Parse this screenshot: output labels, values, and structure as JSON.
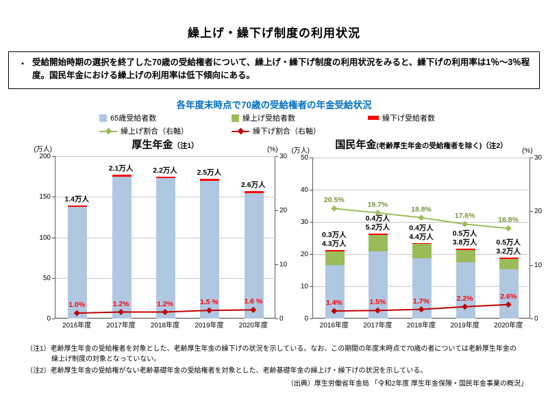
{
  "page_title": "繰上げ・繰下げ制度の利用状況",
  "summary_box": {
    "bullet": "・",
    "text": "受給開始時期の選択を終了した70歳の受給権者について、繰上げ・繰下げ制度の利用状況をみると、繰下げの利用率は1％～3％程度。国民年金における繰上げの利用率は低下傾向にある。"
  },
  "section_title": "各年度末時点で70歳の受給権者の年金受給状況",
  "legend": {
    "bar_items": [
      {
        "label": "65歳受給者数",
        "color": "#b0c7e1"
      },
      {
        "label": "繰上げ受給者数",
        "color": "#9bbb59"
      },
      {
        "label": "繰下げ受給者数",
        "color": "#ff0000"
      }
    ],
    "line_items": [
      {
        "label": "繰上げ割合（右軸）",
        "color": "#9bbb59"
      },
      {
        "label": "繰下げ割合（右軸）",
        "color": "#c00000"
      }
    ]
  },
  "colors": {
    "section_title_blue": "#0070c0",
    "bar_blue": "#b0c7e1",
    "bar_green": "#9bbb59",
    "bar_red": "#ff0000",
    "line_green": "#9bbb59",
    "line_red": "#c00000",
    "label_green": "#76933c",
    "label_red": "#ff0000"
  },
  "chart_data": [
    {
      "type": "bar",
      "title": "厚生年金",
      "title_note": "（注1）",
      "categories": [
        "2016年度",
        "2017年度",
        "2018年度",
        "2019年度",
        "2020年度"
      ],
      "left_axis": {
        "unit": "(万人)",
        "min": 0,
        "max": 200,
        "ticks": [
          0,
          50,
          100,
          150,
          200
        ]
      },
      "right_axis": {
        "unit": "(%)",
        "min": 0,
        "max": 30,
        "ticks": [
          0,
          10,
          20,
          30
        ]
      },
      "grid": true,
      "bar_series": [
        {
          "key": "age65",
          "name": "65歳受給者数",
          "color": "#b0c7e1",
          "estimated": true,
          "values": [
            137.6,
            174.9,
            172.8,
            169.5,
            154.4
          ],
          "labels": null
        },
        {
          "key": "kurisage",
          "name": "繰下げ受給者数",
          "color": "#ff0000",
          "values": [
            1.4,
            2.1,
            2.2,
            2.5,
            2.6
          ],
          "labels": [
            "1.4万人",
            "2.1万人",
            "2.2万人",
            "2.5万人",
            "2.6万人"
          ]
        }
      ],
      "line_series": [
        {
          "key": "kurisage-rate",
          "name": "繰下げ割合（右軸）",
          "axis": "right",
          "color": "#c00000",
          "label_color": "#ff0000",
          "values": [
            1.0,
            1.2,
            1.2,
            1.5,
            1.6
          ],
          "labels": [
            "1.0%",
            "1.2%",
            "1.2%",
            "1.5 %",
            "1.6 %"
          ]
        }
      ]
    },
    {
      "type": "bar",
      "title": "国民年金",
      "title_note": "(老齢厚生年金の受給権者を除く)（注2）",
      "categories": [
        "2016年度",
        "2017年度",
        "2018年度",
        "2019年度",
        "2020年度"
      ],
      "left_axis": {
        "unit": "(万人)",
        "min": 0,
        "max": 50,
        "ticks": [
          0,
          10,
          20,
          30,
          40,
          50
        ]
      },
      "right_axis": {
        "unit": "(%)",
        "min": 0,
        "max": 30,
        "ticks": [
          0,
          10,
          20,
          30
        ]
      },
      "grid": true,
      "bar_series": [
        {
          "key": "age65",
          "name": "65歳受給者数",
          "color": "#b0c7e1",
          "estimated": true,
          "values": [
            16.6,
            20.8,
            18.7,
            17.4,
            15.3
          ],
          "labels": null
        },
        {
          "key": "kuriage",
          "name": "繰上げ受給者数",
          "color": "#9bbb59",
          "values": [
            4.3,
            5.2,
            4.4,
            3.8,
            3.2
          ],
          "labels": [
            "4.3万人",
            "5.2万人",
            "4.4万人",
            "3.8万人",
            "3.2万人"
          ]
        },
        {
          "key": "kurisage",
          "name": "繰下げ受給者数",
          "color": "#ff0000",
          "values": [
            0.3,
            0.4,
            0.4,
            0.5,
            0.5
          ],
          "labels": [
            "0.3万人",
            "0.4万人",
            "0.4万人",
            "0.5万人",
            "0.5万人"
          ]
        }
      ],
      "line_series": [
        {
          "key": "kuriage-rate",
          "name": "繰上げ割合（右軸）",
          "axis": "right",
          "color": "#9bbb59",
          "label_color": "#76933c",
          "values": [
            20.5,
            19.7,
            18.8,
            17.6,
            16.8
          ],
          "labels": [
            "20.5%",
            "19.7%",
            "18.8%",
            "17.6%",
            "16.8%"
          ]
        },
        {
          "key": "kurisage-rate",
          "name": "繰下げ割合（右軸）",
          "axis": "right",
          "color": "#c00000",
          "label_color": "#ff0000",
          "values": [
            1.4,
            1.5,
            1.7,
            2.2,
            2.6
          ],
          "labels": [
            "1.4%",
            "1.5%",
            "1.7%",
            "2.2%",
            "2.6%"
          ]
        }
      ]
    }
  ],
  "notes": [
    {
      "label": "（注1）",
      "text": "老齢厚生年金の受給権者を対象とした、老齢厚生年金の繰下げの状況を示している。なお、この期間の年度末時点で70歳の者については老齢厚生年金の繰上げ制度の対象となっていない。"
    },
    {
      "label": "（注2）",
      "text": "老齢厚生年金の受給権がない老齢基礎年金の受給権者を対象とした、老齢基礎年金の繰上げ・繰下げの状況を示している。"
    }
  ],
  "source": "（出典）厚生労働省年金局 「令和2年度  厚生年金保険・国民年金事業の概況」"
}
